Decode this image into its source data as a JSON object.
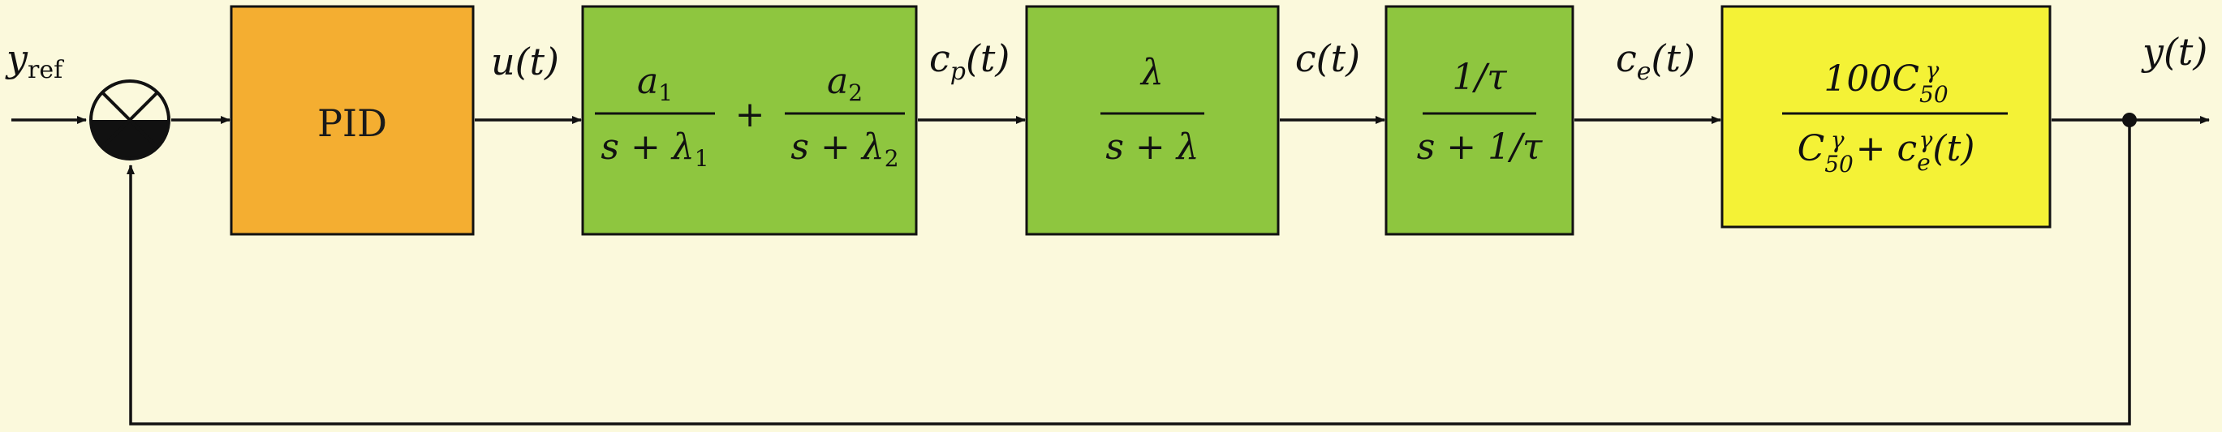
{
  "colors": {
    "background": "#fbf9dc",
    "pid_block": "#f4ae31",
    "plant_blocks": "#8ec63f",
    "effect_block": "#f4f236",
    "wire": "#111111"
  },
  "signals": {
    "reference": {
      "main": "y",
      "sub": "ref"
    },
    "control": "u(t)",
    "plasma": {
      "main": "c",
      "sub": "p",
      "tail": "(t)"
    },
    "concentration": "c(t)",
    "effect_site": {
      "main": "c",
      "sub": "e",
      "tail": "(t)"
    },
    "output": "y(t)"
  },
  "blocks": {
    "pid": {
      "label": "PID"
    },
    "two_compartment": {
      "term1": {
        "num_main": "a",
        "num_sub": "1",
        "den_prefix": "s + λ",
        "den_sub": "1"
      },
      "operator": "+",
      "term2": {
        "num_main": "a",
        "num_sub": "2",
        "den_prefix": "s + λ",
        "den_sub": "2"
      }
    },
    "first_order": {
      "num": "λ",
      "den": "s + λ"
    },
    "effect_delay": {
      "num": "1/τ",
      "den": "s + 1/τ"
    },
    "hill": {
      "num_prefix": "100C",
      "num_sub": "50",
      "num_sup": "γ",
      "den_c": "C",
      "den_c_sub": "50",
      "den_c_sup": "γ",
      "den_plus": " + c",
      "den_ce_sub": "e",
      "den_ce_sup": "γ",
      "den_tail": "(t)"
    }
  }
}
